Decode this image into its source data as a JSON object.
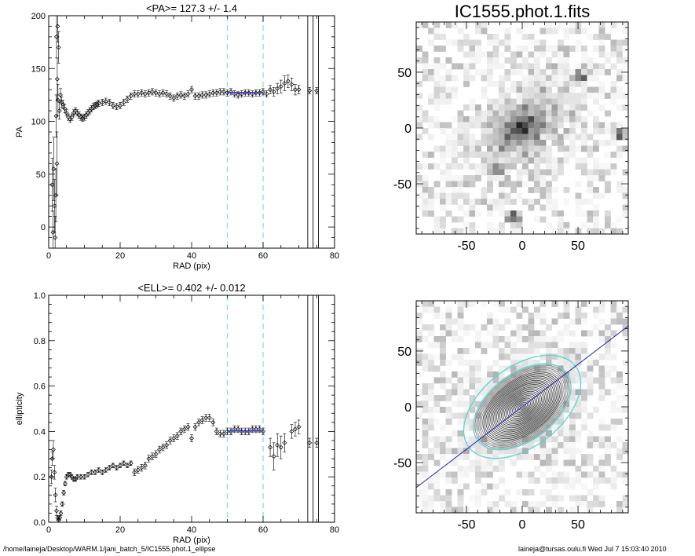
{
  "colors": {
    "axis": "#000000",
    "points": "#000000",
    "fit_range": "#7fe0ea",
    "mean_fit": "#3f3fcf",
    "pa_line": "#2222aa",
    "ellipse_highlight": "#5fd6d6"
  },
  "footer": {
    "path": "/home/laineja/Desktop/WARM.1/jani_batch_5/IC1555.phot.1_ellipse",
    "stamp": "laineja@tursas.oulu.fi  Wed Jul  7 15:03:40 2010"
  },
  "chart_data": [
    {
      "type": "scatter",
      "title": "<PA>= 127.3 +/-   1.4",
      "xlabel": "RAD (pix)",
      "ylabel": "PA",
      "xlim": [
        0,
        80
      ],
      "ylim": [
        -20,
        200
      ],
      "xticks": [
        0,
        20,
        40,
        60,
        80
      ],
      "yticks": [
        0,
        50,
        100,
        150,
        200
      ],
      "fit_range": [
        50,
        60
      ],
      "vertical_lines": [
        72.5,
        74,
        75.5
      ],
      "fit_mean": 127.3,
      "points": [
        [
          1.0,
          40,
          25
        ],
        [
          1.2,
          -5,
          20
        ],
        [
          1.4,
          55,
          30
        ],
        [
          1.6,
          20,
          25
        ],
        [
          1.8,
          -10,
          20
        ],
        [
          2.0,
          30,
          25
        ],
        [
          2.1,
          105,
          20
        ],
        [
          2.2,
          180,
          20
        ],
        [
          2.3,
          60,
          30
        ],
        [
          2.4,
          140,
          20
        ],
        [
          2.5,
          190,
          15
        ],
        [
          2.6,
          120,
          15
        ],
        [
          2.8,
          170,
          15
        ],
        [
          3.0,
          110,
          8
        ],
        [
          3.3,
          125,
          6
        ],
        [
          3.6,
          118,
          5
        ],
        [
          4.0,
          116,
          4
        ],
        [
          4.5,
          112,
          4
        ],
        [
          5.0,
          108,
          3
        ],
        [
          5.5,
          104,
          3
        ],
        [
          6.0,
          102,
          3
        ],
        [
          6.5,
          104,
          3
        ],
        [
          7.0,
          108,
          3
        ],
        [
          7.5,
          110,
          3
        ],
        [
          8.0,
          108,
          3
        ],
        [
          8.5,
          106,
          3
        ],
        [
          9.0,
          104,
          3
        ],
        [
          9.5,
          103,
          3
        ],
        [
          10.0,
          104,
          3
        ],
        [
          10.5,
          106,
          3
        ],
        [
          11.0,
          108,
          3
        ],
        [
          11.5,
          110,
          3
        ],
        [
          12.0,
          112,
          3
        ],
        [
          12.5,
          114,
          3
        ],
        [
          13.0,
          115,
          3
        ],
        [
          13.5,
          116,
          3
        ],
        [
          14.0,
          117,
          3
        ],
        [
          15.0,
          118,
          3
        ],
        [
          16.0,
          119,
          3
        ],
        [
          17.0,
          118,
          3
        ],
        [
          18.0,
          115,
          3
        ],
        [
          19.0,
          114,
          3
        ],
        [
          20.0,
          115,
          3
        ],
        [
          21.0,
          118,
          3
        ],
        [
          22.0,
          121,
          3
        ],
        [
          23.0,
          124,
          3
        ],
        [
          24.0,
          126,
          3
        ],
        [
          25.0,
          126,
          3
        ],
        [
          26.0,
          127,
          3
        ],
        [
          27.0,
          126,
          3
        ],
        [
          28.0,
          127,
          3
        ],
        [
          29.0,
          128,
          3
        ],
        [
          30.0,
          127,
          3
        ],
        [
          31.0,
          126,
          3
        ],
        [
          32.0,
          127,
          3
        ],
        [
          33.0,
          126,
          3
        ],
        [
          34.0,
          124,
          3
        ],
        [
          35.0,
          122,
          3
        ],
        [
          36.0,
          124,
          3
        ],
        [
          37.0,
          125,
          3
        ],
        [
          38.0,
          124,
          3
        ],
        [
          39.0,
          126,
          3
        ],
        [
          40.0,
          130,
          3
        ],
        [
          41.0,
          124,
          3
        ],
        [
          42.0,
          124,
          3
        ],
        [
          43.0,
          125,
          3
        ],
        [
          44.0,
          125,
          3
        ],
        [
          45.0,
          126,
          3
        ],
        [
          46.0,
          127,
          3
        ],
        [
          47.0,
          127,
          3
        ],
        [
          48.0,
          128,
          3
        ],
        [
          49.0,
          128,
          3
        ],
        [
          50.0,
          127,
          3
        ],
        [
          51.0,
          128,
          3
        ],
        [
          52.0,
          126,
          3
        ],
        [
          53.0,
          125,
          3
        ],
        [
          54.0,
          126,
          3
        ],
        [
          55.0,
          127,
          3
        ],
        [
          56.0,
          127,
          3
        ],
        [
          57.0,
          126,
          3
        ],
        [
          58.0,
          127,
          3
        ],
        [
          59.0,
          127,
          3
        ],
        [
          60.0,
          128,
          3
        ],
        [
          61.0,
          126,
          3
        ],
        [
          62.0,
          130,
          4
        ],
        [
          63.0,
          128,
          4
        ],
        [
          64.0,
          131,
          5
        ],
        [
          65.0,
          133,
          6
        ],
        [
          66.0,
          136,
          7
        ],
        [
          67.0,
          138,
          6
        ],
        [
          68.0,
          135,
          6
        ],
        [
          69.0,
          130,
          5
        ],
        [
          70.0,
          130,
          4
        ],
        [
          73.0,
          129,
          3
        ],
        [
          75.0,
          129,
          3
        ]
      ]
    },
    {
      "type": "scatter",
      "title": "<ELL>= 0.402 +/-  0.012",
      "xlabel": "RAD (pix)",
      "ylabel": "ellipticity",
      "xlim": [
        0,
        80
      ],
      "ylim": [
        0,
        1
      ],
      "xticks": [
        0,
        20,
        40,
        60,
        80
      ],
      "yticks": [
        0.0,
        0.2,
        0.4,
        0.6,
        0.8,
        1.0
      ],
      "fit_range": [
        50,
        60
      ],
      "vertical_lines": [
        72.5,
        74,
        75.5
      ],
      "fit_mean": 0.402,
      "points": [
        [
          0.8,
          0.2,
          0.03
        ],
        [
          1.0,
          0.28,
          0.03
        ],
        [
          1.3,
          0.32,
          0.04
        ],
        [
          1.6,
          0.22,
          0.03
        ],
        [
          1.9,
          0.12,
          0.03
        ],
        [
          2.2,
          0.05,
          0.02
        ],
        [
          2.5,
          0.02,
          0.01
        ],
        [
          2.8,
          0.01,
          0.01
        ],
        [
          3.1,
          0.02,
          0.01
        ],
        [
          3.4,
          0.04,
          0.01
        ],
        [
          3.8,
          0.08,
          0.01
        ],
        [
          4.2,
          0.13,
          0.01
        ],
        [
          4.6,
          0.17,
          0.01
        ],
        [
          5.0,
          0.2,
          0.01
        ],
        [
          5.5,
          0.21,
          0.01
        ],
        [
          6.0,
          0.21,
          0.01
        ],
        [
          6.5,
          0.2,
          0.01
        ],
        [
          7.0,
          0.19,
          0.01
        ],
        [
          7.5,
          0.19,
          0.01
        ],
        [
          8.0,
          0.2,
          0.01
        ],
        [
          9.0,
          0.2,
          0.01
        ],
        [
          10.0,
          0.2,
          0.01
        ],
        [
          11.0,
          0.21,
          0.01
        ],
        [
          12.0,
          0.22,
          0.01
        ],
        [
          13.0,
          0.22,
          0.01
        ],
        [
          14.0,
          0.23,
          0.01
        ],
        [
          15.0,
          0.22,
          0.01
        ],
        [
          16.0,
          0.23,
          0.01
        ],
        [
          17.0,
          0.24,
          0.01
        ],
        [
          18.0,
          0.25,
          0.01
        ],
        [
          19.0,
          0.24,
          0.01
        ],
        [
          20.0,
          0.25,
          0.01
        ],
        [
          21.0,
          0.26,
          0.01
        ],
        [
          22.0,
          0.25,
          0.01
        ],
        [
          23.0,
          0.26,
          0.01
        ],
        [
          24.0,
          0.22,
          0.015
        ],
        [
          25.0,
          0.23,
          0.015
        ],
        [
          26.0,
          0.24,
          0.015
        ],
        [
          27.0,
          0.25,
          0.015
        ],
        [
          28.0,
          0.28,
          0.015
        ],
        [
          29.0,
          0.29,
          0.015
        ],
        [
          30.0,
          0.3,
          0.015
        ],
        [
          31.0,
          0.32,
          0.015
        ],
        [
          32.0,
          0.33,
          0.015
        ],
        [
          33.0,
          0.34,
          0.015
        ],
        [
          34.0,
          0.36,
          0.015
        ],
        [
          35.0,
          0.37,
          0.015
        ],
        [
          36.0,
          0.38,
          0.015
        ],
        [
          37.0,
          0.4,
          0.015
        ],
        [
          38.0,
          0.41,
          0.015
        ],
        [
          39.0,
          0.42,
          0.015
        ],
        [
          40.0,
          0.37,
          0.015
        ],
        [
          41.0,
          0.42,
          0.015
        ],
        [
          42.0,
          0.44,
          0.015
        ],
        [
          43.0,
          0.45,
          0.015
        ],
        [
          44.0,
          0.46,
          0.015
        ],
        [
          45.0,
          0.46,
          0.015
        ],
        [
          46.0,
          0.44,
          0.015
        ],
        [
          47.0,
          0.4,
          0.015
        ],
        [
          48.0,
          0.39,
          0.015
        ],
        [
          49.0,
          0.39,
          0.015
        ],
        [
          50.0,
          0.4,
          0.015
        ],
        [
          51.0,
          0.4,
          0.015
        ],
        [
          52.0,
          0.41,
          0.015
        ],
        [
          53.0,
          0.41,
          0.015
        ],
        [
          54.0,
          0.4,
          0.015
        ],
        [
          55.0,
          0.4,
          0.015
        ],
        [
          56.0,
          0.4,
          0.015
        ],
        [
          57.0,
          0.41,
          0.015
        ],
        [
          58.0,
          0.41,
          0.015
        ],
        [
          59.0,
          0.41,
          0.015
        ],
        [
          60.0,
          0.4,
          0.015
        ],
        [
          62.0,
          0.33,
          0.04
        ],
        [
          63.0,
          0.29,
          0.06
        ],
        [
          64.0,
          0.34,
          0.05
        ],
        [
          65.0,
          0.33,
          0.05
        ],
        [
          66.0,
          0.35,
          0.04
        ],
        [
          68.0,
          0.4,
          0.03
        ],
        [
          69.0,
          0.41,
          0.03
        ],
        [
          70.0,
          0.42,
          0.03
        ],
        [
          73.0,
          0.35,
          0.02
        ],
        [
          75.0,
          0.35,
          0.02
        ]
      ]
    },
    {
      "type": "heatmap",
      "title": "IC1555.phot.1.fits",
      "xlim": [
        -95,
        95
      ],
      "ylim": [
        -95,
        95
      ],
      "xticks": [
        -50,
        0,
        50
      ],
      "yticks": [
        -50,
        0,
        50
      ],
      "center": [
        0,
        0
      ],
      "pa_deg": 127.3,
      "ellipticity": 0.402,
      "bright_spots": [
        [
          -22,
          -38
        ],
        [
          53,
          45
        ],
        [
          -8,
          -80
        ],
        [
          88,
          -5
        ]
      ]
    },
    {
      "type": "heatmap",
      "xlim": [
        -95,
        95
      ],
      "ylim": [
        -95,
        95
      ],
      "xticks": [
        -50,
        0,
        50
      ],
      "yticks": [
        -50,
        0,
        50
      ],
      "center": [
        0,
        0
      ],
      "pa_deg": 127.3,
      "ellipticity": 0.402,
      "fit_range": [
        50,
        60
      ],
      "isophote_max": 50
    }
  ]
}
